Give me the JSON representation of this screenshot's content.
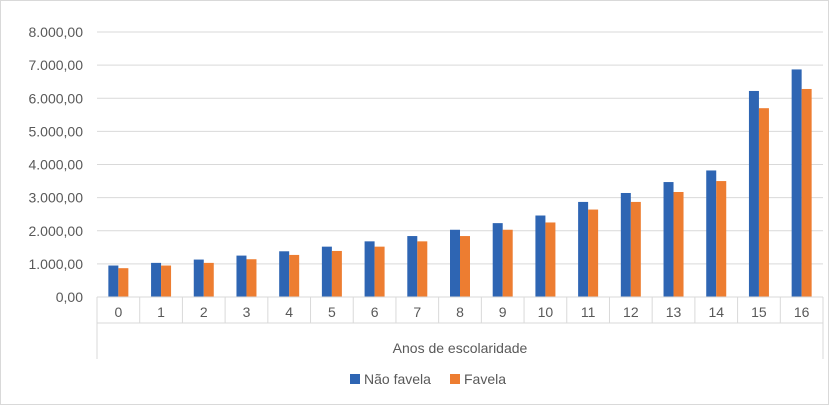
{
  "chart_data": {
    "type": "bar",
    "title": "",
    "xlabel": "Anos de escolaridade",
    "ylabel": "",
    "categories": [
      "0",
      "1",
      "2",
      "3",
      "4",
      "5",
      "6",
      "7",
      "8",
      "9",
      "10",
      "11",
      "12",
      "13",
      "14",
      "15",
      "16"
    ],
    "series": [
      {
        "name": "Não favela",
        "color": "#2e65b3",
        "values": [
          950,
          1030,
          1130,
          1250,
          1380,
          1520,
          1680,
          1840,
          2030,
          2230,
          2460,
          2870,
          3140,
          3470,
          3820,
          6220,
          6870
        ]
      },
      {
        "name": "Favela",
        "color": "#ed7d31",
        "values": [
          870,
          950,
          1030,
          1140,
          1270,
          1390,
          1520,
          1680,
          1840,
          2030,
          2250,
          2640,
          2870,
          3170,
          3500,
          5700,
          6280
        ]
      }
    ],
    "ylim": [
      0,
      8000
    ],
    "yticks": [
      0,
      1000,
      2000,
      3000,
      4000,
      5000,
      6000,
      7000,
      8000
    ],
    "ytick_labels": [
      "0,00",
      "1.000,00",
      "2.000,00",
      "3.000,00",
      "4.000,00",
      "5.000,00",
      "6.000,00",
      "7.000,00",
      "8.000,00"
    ],
    "grid": true,
    "legend_position": "bottom"
  }
}
